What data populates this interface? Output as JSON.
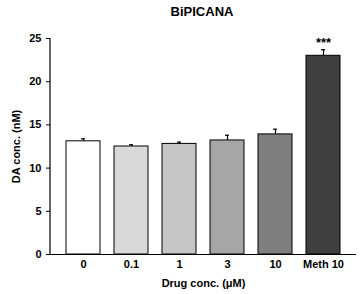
{
  "chart_data": {
    "type": "bar",
    "title": "BiPICANA",
    "x_label": "Drug conc. (μM)",
    "y_label": "DA conc. (nM)",
    "categories": [
      "0",
      "0.1",
      "1",
      "3",
      "10",
      "Meth 10"
    ],
    "values": [
      13.1,
      12.5,
      12.8,
      13.2,
      13.9,
      23.0
    ],
    "errors": [
      0.3,
      0.2,
      0.2,
      0.6,
      0.6,
      0.7
    ],
    "colors": [
      "#ffffff",
      "#d9d9d9",
      "#c6c6c6",
      "#a6a6a6",
      "#7f7f7f",
      "#3f3f3f"
    ],
    "ylim": [
      0,
      25
    ],
    "yticks": [
      0,
      5,
      10,
      15,
      20,
      25
    ],
    "annotations": [
      {
        "category": "Meth 10",
        "text": "***"
      }
    ]
  }
}
